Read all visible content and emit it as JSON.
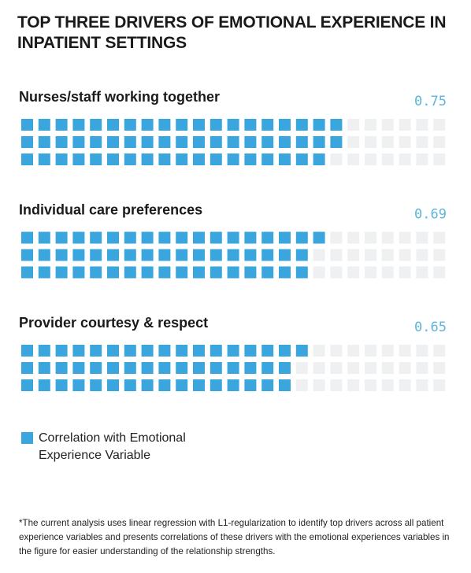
{
  "chart_data": {
    "type": "waffle",
    "title": "TOP THREE DRIVERS OF EMOTIONAL EXPERIENCE IN INPATIENT SETTINGS",
    "categories": [
      "Nurses/staff working together",
      "Individual care preferences",
      "Provider courtesy & respect"
    ],
    "values": [
      0.75,
      0.69,
      0.65
    ],
    "color": "#3ba6dd",
    "legend": "Correlation with Emotional Experience Variable",
    "footnote": "*The current analysis uses linear regression with L1-regularization to identify top drivers across all patient experience variables and presents correlations of these drivers with the emotional experiences variables in the figure for easier understanding of the relationship strengths."
  }
}
